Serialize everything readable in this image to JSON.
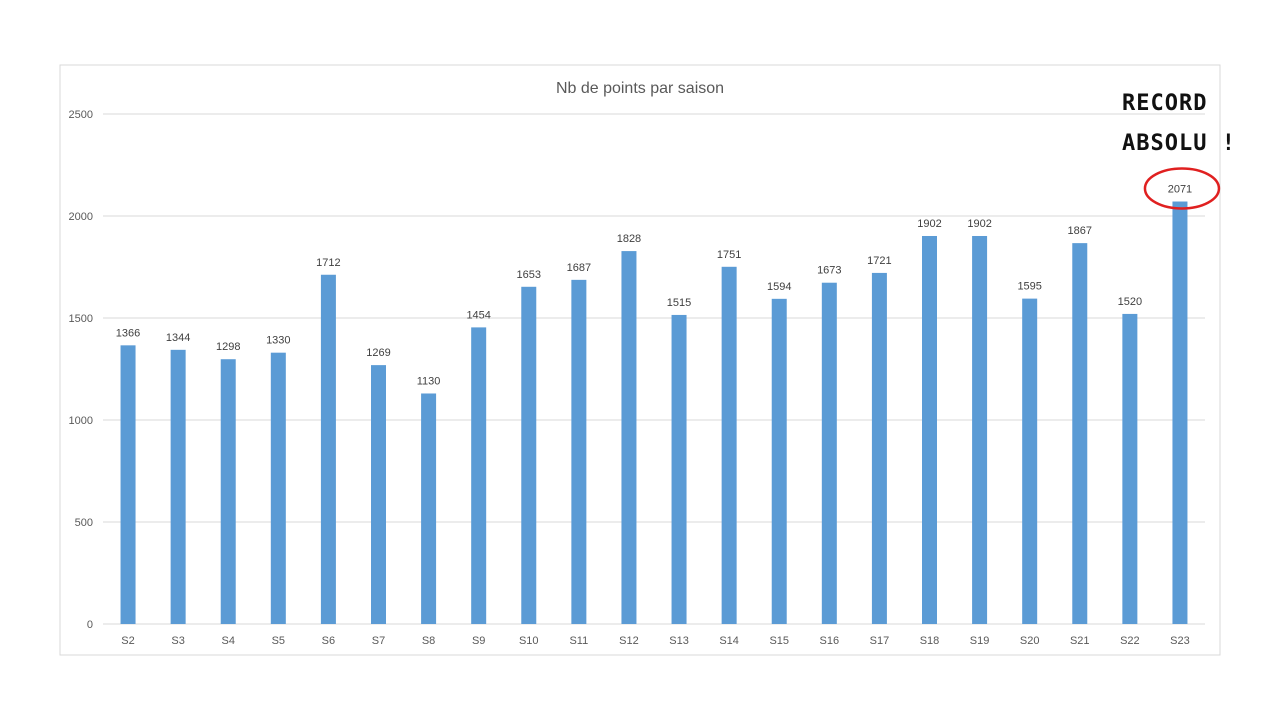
{
  "chart_data": {
    "type": "bar",
    "title": "Nb de points par saison",
    "xlabel": "",
    "ylabel": "",
    "ylim": [
      0,
      2500
    ],
    "yticks": [
      0,
      500,
      1000,
      1500,
      2000,
      2500
    ],
    "grid": true,
    "categories": [
      "S2",
      "S3",
      "S4",
      "S5",
      "S6",
      "S7",
      "S8",
      "S9",
      "S10",
      "S11",
      "S12",
      "S13",
      "S14",
      "S15",
      "S16",
      "S17",
      "S18",
      "S19",
      "S20",
      "S21",
      "S22",
      "S23"
    ],
    "values": [
      1366,
      1344,
      1298,
      1330,
      1712,
      1269,
      1130,
      1454,
      1653,
      1687,
      1828,
      1515,
      1751,
      1594,
      1673,
      1721,
      1902,
      1902,
      1595,
      1867,
      1520,
      2071
    ],
    "bar_color": "#5b9bd5",
    "highlight_color": "#e02020",
    "highlight_index": 21,
    "annotation": {
      "line1": "RECORD",
      "line2": "ABSOLU !"
    }
  }
}
